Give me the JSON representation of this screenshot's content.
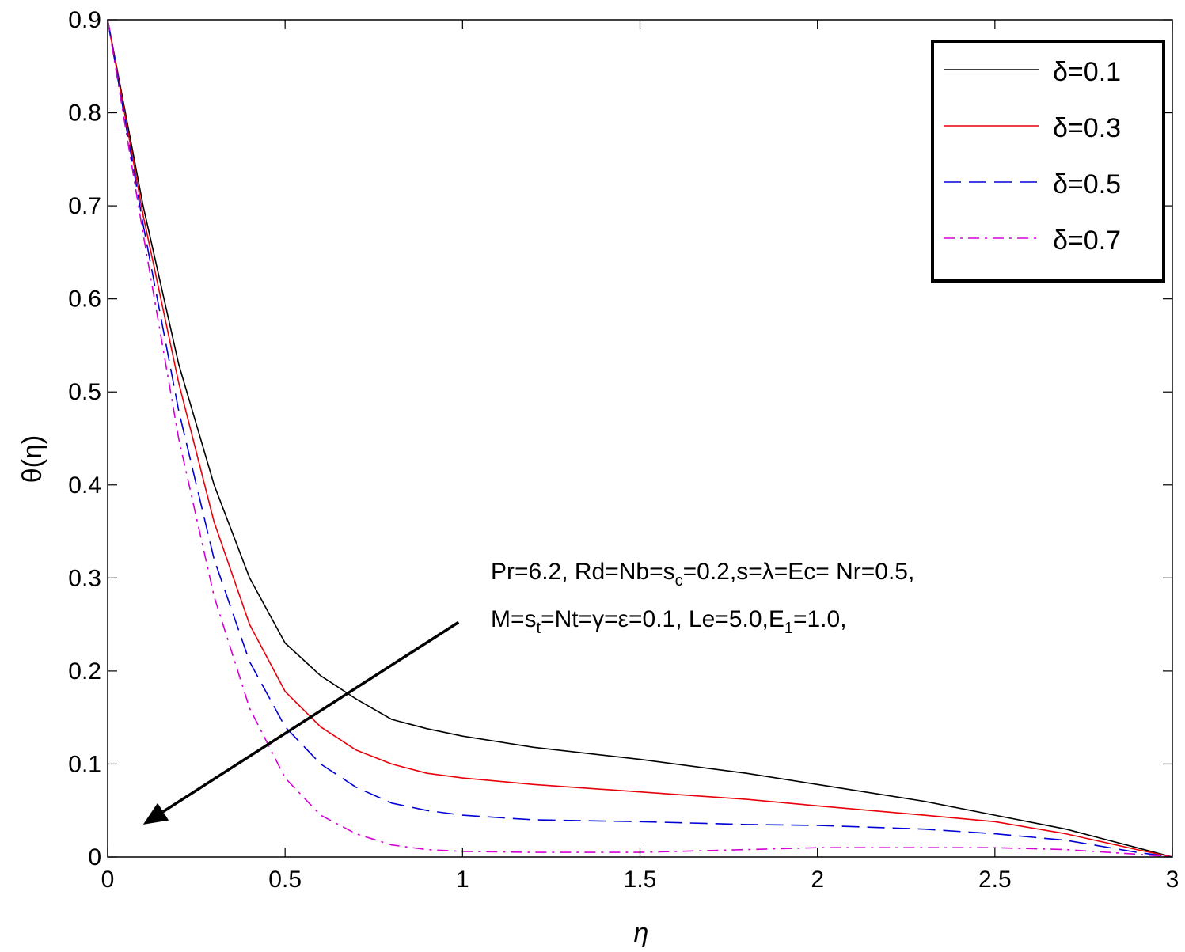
{
  "chart_data": {
    "type": "line",
    "xlabel": "η",
    "ylabel": "θ(η)",
    "xlim": [
      0,
      3
    ],
    "ylim": [
      0,
      0.9
    ],
    "xticks": [
      "0",
      "0.5",
      "1",
      "1.5",
      "2",
      "2.5",
      "3"
    ],
    "yticks": [
      "0",
      "0.1",
      "0.2",
      "0.3",
      "0.4",
      "0.5",
      "0.6",
      "0.7",
      "0.8",
      "0.9"
    ],
    "grid": false,
    "legend_position": "top-right",
    "x": [
      0,
      0.1,
      0.2,
      0.3,
      0.4,
      0.5,
      0.6,
      0.7,
      0.8,
      0.9,
      1.0,
      1.2,
      1.5,
      1.8,
      2.0,
      2.3,
      2.5,
      2.7,
      2.9,
      3.0
    ],
    "series": [
      {
        "name": "δ=0.1",
        "color": "#000000",
        "dash": "solid",
        "values": [
          0.9,
          0.7,
          0.53,
          0.4,
          0.3,
          0.23,
          0.195,
          0.17,
          0.148,
          0.138,
          0.13,
          0.118,
          0.105,
          0.09,
          0.078,
          0.06,
          0.045,
          0.03,
          0.01,
          0.0
        ]
      },
      {
        "name": "δ=0.3",
        "color": "#e8000b",
        "dash": "solid",
        "values": [
          0.9,
          0.69,
          0.51,
          0.36,
          0.25,
          0.178,
          0.14,
          0.115,
          0.1,
          0.09,
          0.085,
          0.078,
          0.07,
          0.062,
          0.055,
          0.045,
          0.038,
          0.025,
          0.008,
          0.0
        ]
      },
      {
        "name": "δ=0.5",
        "color": "#0000d5",
        "dash": "dash",
        "values": [
          0.9,
          0.68,
          0.48,
          0.32,
          0.21,
          0.14,
          0.1,
          0.075,
          0.058,
          0.05,
          0.045,
          0.04,
          0.038,
          0.035,
          0.034,
          0.03,
          0.025,
          0.018,
          0.005,
          0.0
        ]
      },
      {
        "name": "δ=0.7",
        "color": "#d500d5",
        "dash": "dashdot",
        "values": [
          0.9,
          0.67,
          0.45,
          0.28,
          0.16,
          0.085,
          0.045,
          0.025,
          0.013,
          0.008,
          0.006,
          0.005,
          0.005,
          0.008,
          0.01,
          0.01,
          0.01,
          0.008,
          0.003,
          0.0
        ]
      }
    ],
    "annotation": {
      "line1": {
        "a": "Pr=6.2, Rd=Nb=s",
        "a_sub": "c",
        "b": "=0.2,s=λ=Ec= Nr=0.5,"
      },
      "line2": {
        "a": "M=s",
        "a_sub": "t",
        "b": "=Nt=γ=ε=0.1, Le=5.0,E",
        "b_sub": "1",
        "c": "=1.0,"
      },
      "arrow_from": [
        1.0,
        0.255
      ],
      "arrow_to": [
        0.1,
        0.035
      ]
    }
  }
}
